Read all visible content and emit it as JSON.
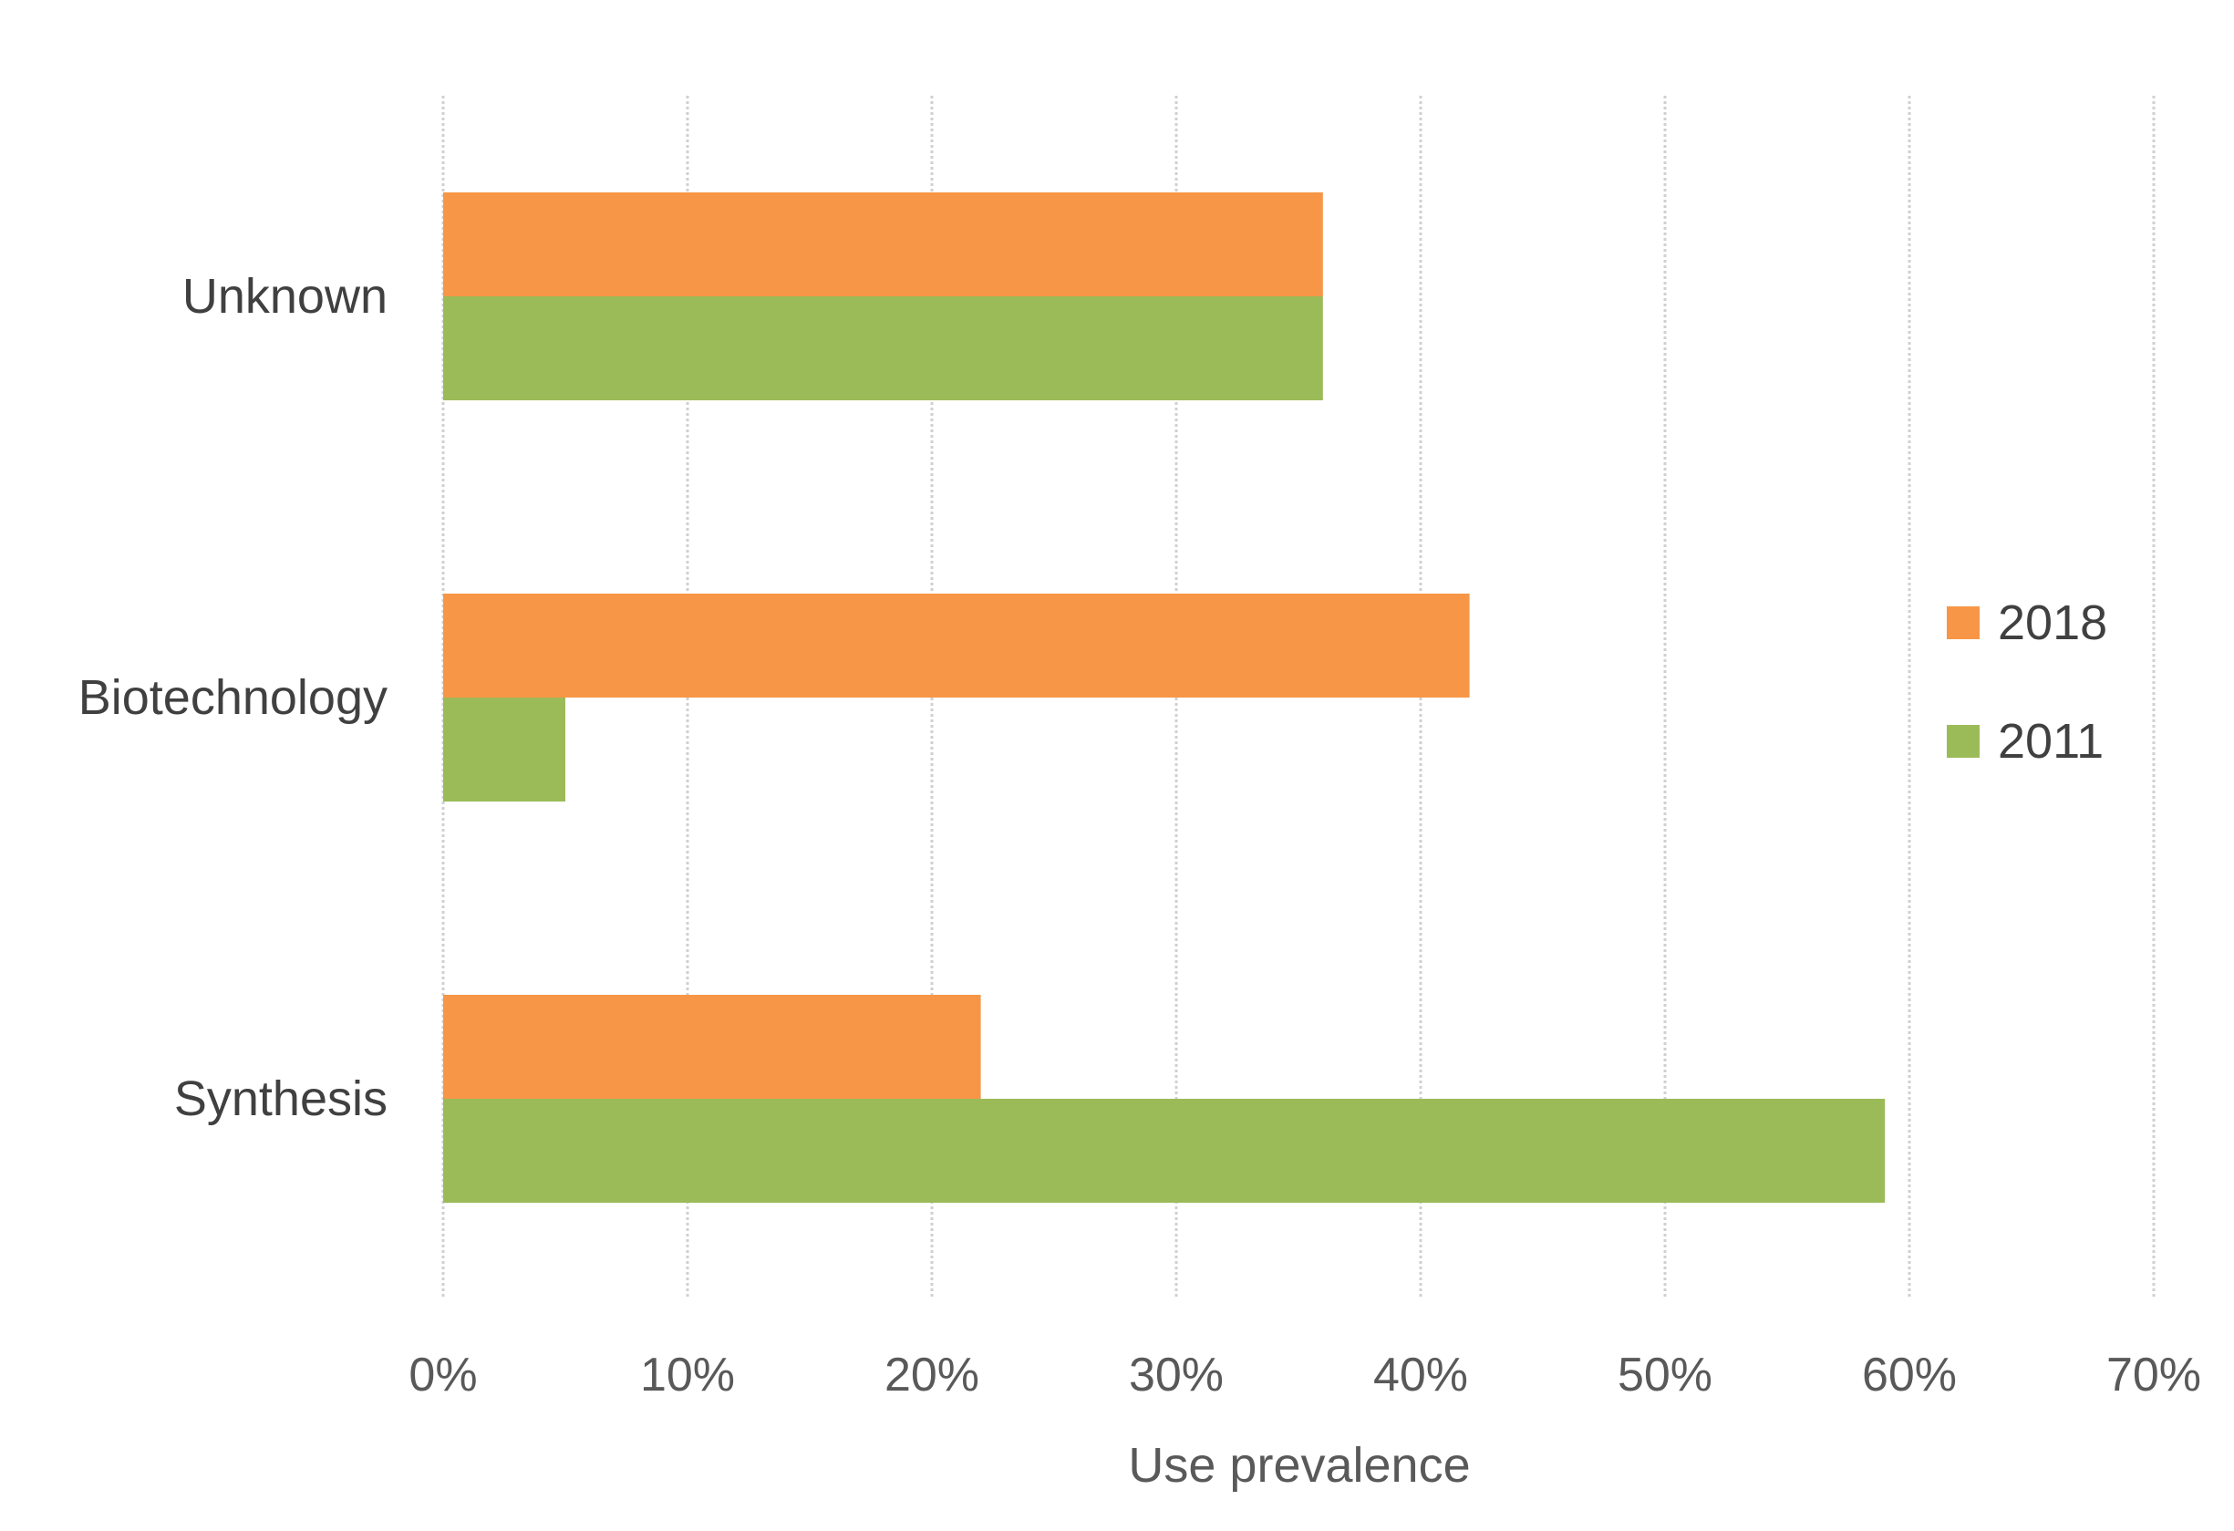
{
  "chart_data": {
    "type": "bar",
    "orientation": "horizontal",
    "categories": [
      "Unknown",
      "Biotechnology",
      "Synthesis"
    ],
    "series": [
      {
        "name": "2018",
        "color": "#F79646",
        "values": [
          36,
          42,
          22
        ]
      },
      {
        "name": "2011",
        "color": "#9BBB59",
        "values": [
          36,
          5,
          59
        ]
      }
    ],
    "xlabel": "Use prevalence",
    "ylabel": "",
    "xlim": [
      0,
      70
    ],
    "xticks": [
      0,
      10,
      20,
      30,
      40,
      50,
      60,
      70
    ],
    "tick_suffix": "%",
    "grid": true,
    "legend_position": "right"
  }
}
